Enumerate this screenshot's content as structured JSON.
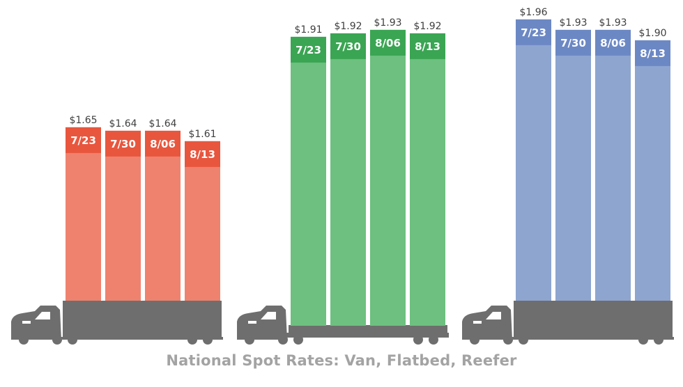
{
  "caption": "National Spot Rates: Van, Flatbed, Reefer",
  "chart_data": [
    {
      "type": "bar",
      "categories": [
        "7/23",
        "7/30",
        "8/06",
        "8/13"
      ],
      "values": [
        1.65,
        1.64,
        1.64,
        1.61
      ],
      "value_labels": [
        "$1.65",
        "$1.64",
        "$1.64",
        "$1.61"
      ],
      "colors": {
        "top": "#e8563e",
        "body": "#ef826e"
      },
      "trailer": "van"
    },
    {
      "type": "bar",
      "categories": [
        "7/23",
        "7/30",
        "8/06",
        "8/13"
      ],
      "values": [
        1.91,
        1.92,
        1.93,
        1.92
      ],
      "value_labels": [
        "$1.91",
        "$1.92",
        "$1.93",
        "$1.92"
      ],
      "colors": {
        "top": "#3aa553",
        "body": "#6dc07f"
      },
      "trailer": "flatbed"
    },
    {
      "type": "bar",
      "categories": [
        "7/23",
        "7/30",
        "8/06",
        "8/13"
      ],
      "values": [
        1.96,
        1.93,
        1.93,
        1.9
      ],
      "value_labels": [
        "$1.96",
        "$1.93",
        "$1.93",
        "$1.90"
      ],
      "colors": {
        "top": "#6c88c4",
        "body": "#8ea5d0"
      },
      "trailer": "reefer"
    }
  ],
  "colors": {
    "truck": "#6e6e6e",
    "caption": "#a3a3a3",
    "value_text": "#3f3f3f",
    "date_text": "#ffffff"
  }
}
